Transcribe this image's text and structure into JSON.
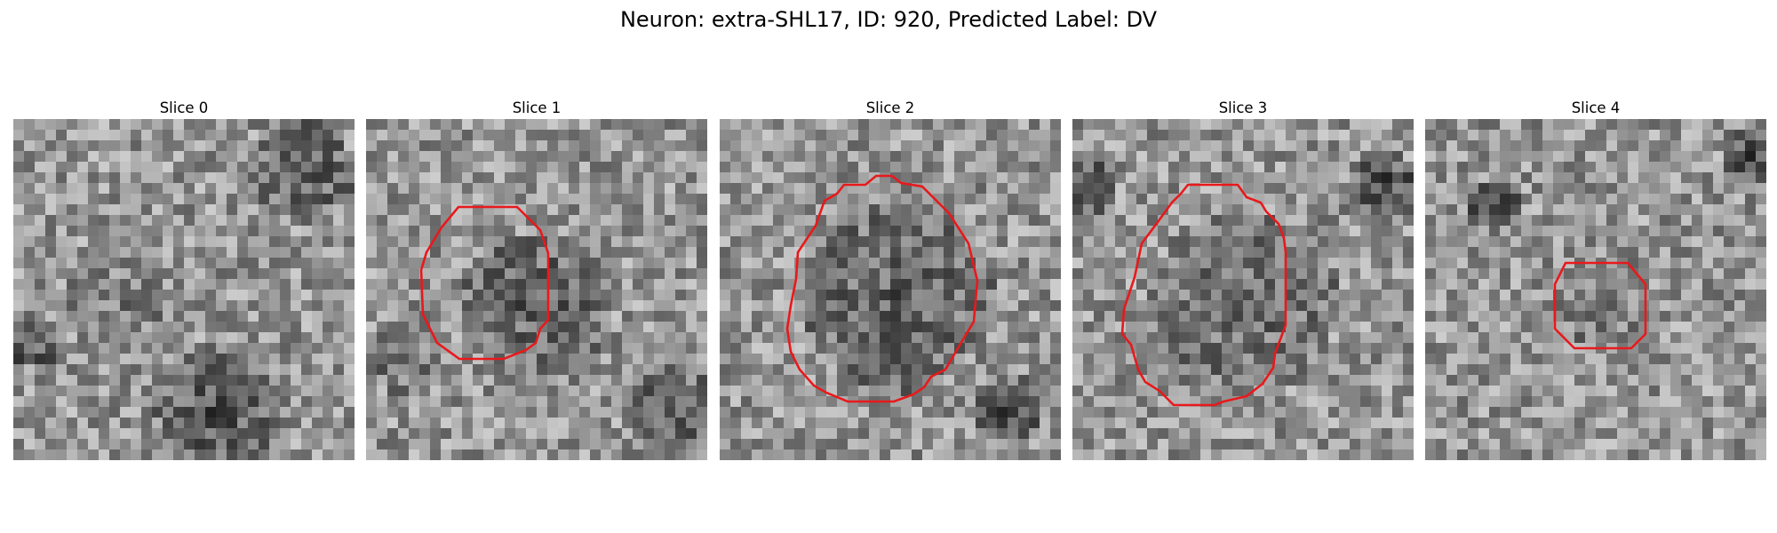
{
  "figure": {
    "suptitle": "Neuron: extra-SHL17, ID: 920, Predicted Label: DV"
  },
  "panels": [
    {
      "title": "Slice 0",
      "has_contour": false
    },
    {
      "title": "Slice 1",
      "has_contour": true
    },
    {
      "title": "Slice 2",
      "has_contour": true
    },
    {
      "title": "Slice 3",
      "has_contour": true
    },
    {
      "title": "Slice 4",
      "has_contour": true
    }
  ],
  "colors": {
    "contour": "#e8191c",
    "background": "#ffffff"
  },
  "colormap": "gray"
}
